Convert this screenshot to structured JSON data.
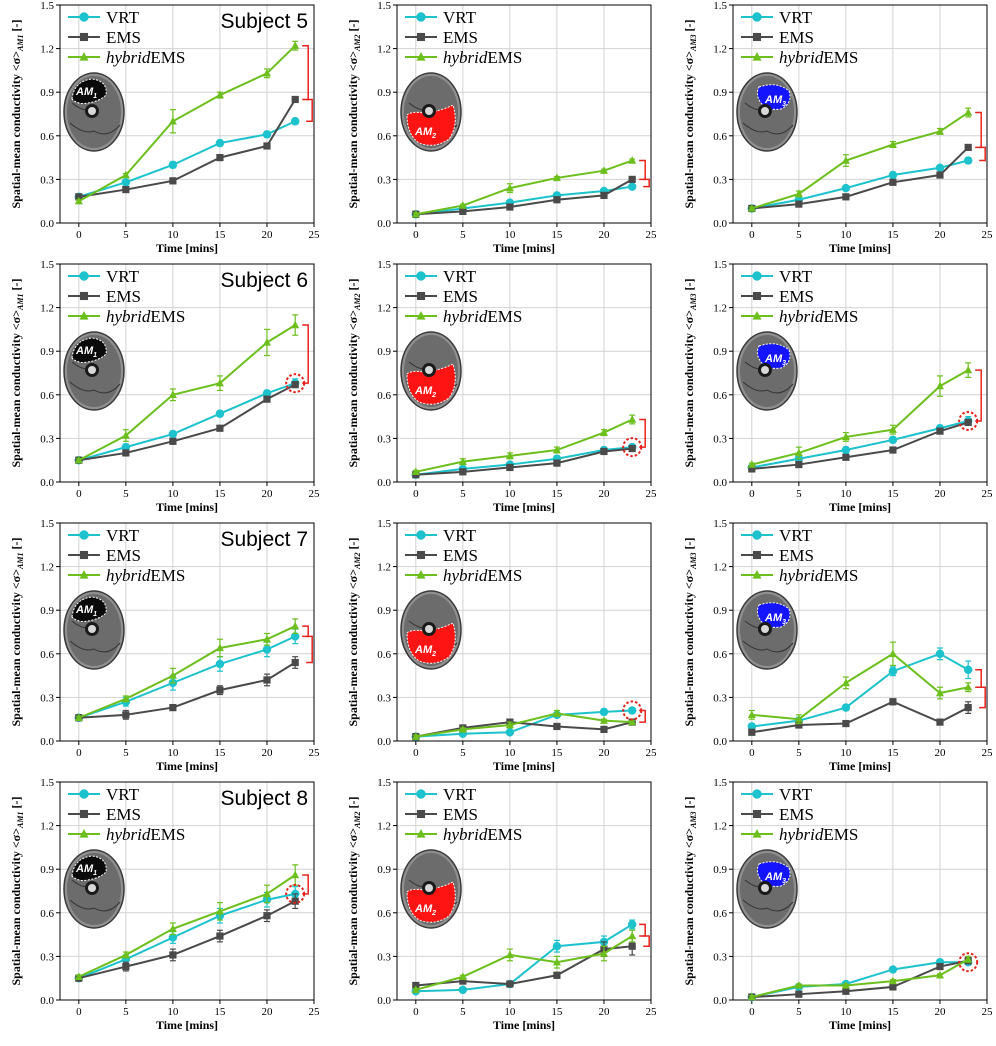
{
  "colors": {
    "vrt": "#1cc2cc",
    "ems": "#4a4a4a",
    "hybrid": "#6cbf1c",
    "bracket": "#e8231e",
    "grid": "#d2d2d2",
    "red_region": "#ff1414",
    "blue_region": "#1414ff"
  },
  "shared": {
    "xlabel": "Time [mins]",
    "ylabel_prefix": "Spatial-mean conductivity <",
    "ylabel_sigma": "σ",
    "ylabel_suffix": " [-]",
    "x_ticks": [
      "0",
      "5",
      "10",
      "15",
      "20",
      "25"
    ],
    "y_ticks": [
      "0.0",
      "0.3",
      "0.6",
      "0.9",
      "1.2",
      "1.5"
    ],
    "xlim": [
      -2,
      25
    ],
    "ylim": [
      0,
      1.5
    ],
    "legend": {
      "vrt": "VRT",
      "ems": "EMS",
      "hybrid_italic": "hybrid",
      "hybrid_rest": "EMS"
    },
    "region_labels": [
      "AM1",
      "AM2",
      "AM3"
    ],
    "region_label_parts": {
      "AM1": [
        "AM",
        "1"
      ],
      "AM2": [
        "AM",
        "2"
      ],
      "AM3": [
        "AM",
        "3"
      ]
    },
    "ylabel_subs": {
      "AM1": "AM1",
      "AM2": "AM2",
      "AM3": "AM3"
    }
  },
  "chart_data": [
    {
      "type": "line",
      "subject": "Subject 5",
      "region": "AM1",
      "x": [
        0,
        5,
        10,
        15,
        20,
        23
      ],
      "series": [
        {
          "name": "VRT",
          "values": [
            0.18,
            0.28,
            0.4,
            0.55,
            0.61,
            0.7
          ],
          "err": [
            0.02,
            0.02,
            0.02,
            0.02,
            0.02,
            0.02
          ]
        },
        {
          "name": "EMS",
          "values": [
            0.18,
            0.23,
            0.29,
            0.45,
            0.53,
            0.85
          ],
          "err": [
            0.01,
            0.01,
            0.01,
            0.01,
            0.01,
            0.01
          ]
        },
        {
          "name": "hybridEMS",
          "values": [
            0.15,
            0.33,
            0.7,
            0.88,
            1.03,
            1.22
          ],
          "err": [
            0.01,
            0.01,
            0.08,
            0.02,
            0.03,
            0.03
          ]
        }
      ],
      "brackets": [
        [
          1.22,
          0.85
        ],
        [
          0.85,
          0.7
        ]
      ],
      "circle": false
    },
    {
      "type": "line",
      "subject": "",
      "region": "AM2",
      "x": [
        0,
        5,
        10,
        15,
        20,
        23
      ],
      "series": [
        {
          "name": "VRT",
          "values": [
            0.06,
            0.1,
            0.14,
            0.19,
            0.22,
            0.25
          ],
          "err": [
            0.01,
            0.01,
            0.01,
            0.01,
            0.01,
            0.01
          ]
        },
        {
          "name": "EMS",
          "values": [
            0.06,
            0.08,
            0.11,
            0.16,
            0.19,
            0.3
          ],
          "err": [
            0.01,
            0.01,
            0.01,
            0.01,
            0.01,
            0.01
          ]
        },
        {
          "name": "hybridEMS",
          "values": [
            0.06,
            0.12,
            0.24,
            0.31,
            0.36,
            0.43
          ],
          "err": [
            0.01,
            0.01,
            0.03,
            0.01,
            0.01,
            0.01
          ]
        }
      ],
      "brackets": [
        [
          0.43,
          0.3
        ],
        [
          0.3,
          0.25
        ]
      ],
      "circle": false
    },
    {
      "type": "line",
      "subject": "",
      "region": "AM3",
      "x": [
        0,
        5,
        10,
        15,
        20,
        23
      ],
      "series": [
        {
          "name": "VRT",
          "values": [
            0.1,
            0.16,
            0.24,
            0.33,
            0.38,
            0.43
          ],
          "err": [
            0.01,
            0.01,
            0.01,
            0.02,
            0.01,
            0.02
          ]
        },
        {
          "name": "EMS",
          "values": [
            0.1,
            0.13,
            0.18,
            0.28,
            0.33,
            0.52
          ],
          "err": [
            0.01,
            0.01,
            0.01,
            0.01,
            0.01,
            0.01
          ]
        },
        {
          "name": "hybridEMS",
          "values": [
            0.1,
            0.2,
            0.43,
            0.54,
            0.63,
            0.76
          ],
          "err": [
            0.01,
            0.02,
            0.04,
            0.02,
            0.02,
            0.03
          ]
        }
      ],
      "brackets": [
        [
          0.76,
          0.52
        ],
        [
          0.52,
          0.43
        ]
      ],
      "circle": false
    },
    {
      "type": "line",
      "subject": "Subject 6",
      "region": "AM1",
      "x": [
        0,
        5,
        10,
        15,
        20,
        23
      ],
      "series": [
        {
          "name": "VRT",
          "values": [
            0.15,
            0.24,
            0.33,
            0.47,
            0.61,
            0.68
          ],
          "err": [
            0.01,
            0.02,
            0.02,
            0.02,
            0.02,
            0.03
          ]
        },
        {
          "name": "EMS",
          "values": [
            0.15,
            0.2,
            0.28,
            0.37,
            0.57,
            0.67
          ],
          "err": [
            0.01,
            0.01,
            0.01,
            0.01,
            0.01,
            0.01
          ]
        },
        {
          "name": "hybridEMS",
          "values": [
            0.15,
            0.32,
            0.6,
            0.68,
            0.96,
            1.08
          ],
          "err": [
            0.01,
            0.04,
            0.04,
            0.05,
            0.09,
            0.07
          ]
        }
      ],
      "brackets": [
        [
          1.08,
          0.68
        ]
      ],
      "circle": true
    },
    {
      "type": "line",
      "subject": "",
      "region": "AM2",
      "x": [
        0,
        5,
        10,
        15,
        20,
        23
      ],
      "series": [
        {
          "name": "VRT",
          "values": [
            0.05,
            0.09,
            0.12,
            0.16,
            0.22,
            0.24
          ],
          "err": [
            0.01,
            0.01,
            0.01,
            0.02,
            0.02,
            0.02
          ]
        },
        {
          "name": "EMS",
          "values": [
            0.05,
            0.07,
            0.1,
            0.13,
            0.21,
            0.23
          ],
          "err": [
            0.01,
            0.01,
            0.01,
            0.01,
            0.01,
            0.01
          ]
        },
        {
          "name": "hybridEMS",
          "values": [
            0.07,
            0.14,
            0.18,
            0.22,
            0.34,
            0.43
          ],
          "err": [
            0.01,
            0.02,
            0.02,
            0.02,
            0.02,
            0.03
          ]
        }
      ],
      "brackets": [
        [
          0.43,
          0.24
        ]
      ],
      "circle": true
    },
    {
      "type": "line",
      "subject": "",
      "region": "AM3",
      "x": [
        0,
        5,
        10,
        15,
        20,
        23
      ],
      "series": [
        {
          "name": "VRT",
          "values": [
            0.1,
            0.16,
            0.22,
            0.29,
            0.37,
            0.42
          ],
          "err": [
            0.01,
            0.02,
            0.02,
            0.02,
            0.02,
            0.03
          ]
        },
        {
          "name": "EMS",
          "values": [
            0.09,
            0.12,
            0.17,
            0.22,
            0.35,
            0.41
          ],
          "err": [
            0.01,
            0.01,
            0.01,
            0.01,
            0.01,
            0.01
          ]
        },
        {
          "name": "hybridEMS",
          "values": [
            0.12,
            0.2,
            0.31,
            0.36,
            0.66,
            0.77
          ],
          "err": [
            0.01,
            0.04,
            0.03,
            0.03,
            0.07,
            0.05
          ]
        }
      ],
      "brackets": [
        [
          0.77,
          0.42
        ]
      ],
      "circle": true
    },
    {
      "type": "line",
      "subject": "Subject 7",
      "region": "AM1",
      "x": [
        0,
        5,
        10,
        15,
        20,
        23
      ],
      "series": [
        {
          "name": "VRT",
          "values": [
            0.16,
            0.27,
            0.4,
            0.53,
            0.63,
            0.72
          ],
          "err": [
            0.01,
            0.03,
            0.05,
            0.05,
            0.05,
            0.05
          ]
        },
        {
          "name": "EMS",
          "values": [
            0.16,
            0.18,
            0.23,
            0.35,
            0.42,
            0.54
          ],
          "err": [
            0.01,
            0.03,
            0.02,
            0.03,
            0.04,
            0.04
          ]
        },
        {
          "name": "hybridEMS",
          "values": [
            0.16,
            0.29,
            0.45,
            0.64,
            0.7,
            0.79
          ],
          "err": [
            0.01,
            0.02,
            0.05,
            0.06,
            0.04,
            0.05
          ]
        }
      ],
      "brackets": [
        [
          0.79,
          0.72
        ],
        [
          0.72,
          0.54
        ]
      ],
      "circle": false
    },
    {
      "type": "line",
      "subject": "",
      "region": "AM2",
      "x": [
        0,
        5,
        10,
        15,
        20,
        23
      ],
      "series": [
        {
          "name": "VRT",
          "values": [
            0.03,
            0.05,
            0.06,
            0.18,
            0.2,
            0.21
          ],
          "err": [
            0.01,
            0.01,
            0.01,
            0.01,
            0.02,
            0.02
          ]
        },
        {
          "name": "EMS",
          "values": [
            0.03,
            0.09,
            0.13,
            0.1,
            0.08,
            0.13
          ],
          "err": [
            0.01,
            0.01,
            0.02,
            0.01,
            0.01,
            0.01
          ]
        },
        {
          "name": "hybridEMS",
          "values": [
            0.03,
            0.08,
            0.11,
            0.19,
            0.14,
            0.13
          ],
          "err": [
            0.01,
            0.01,
            0.02,
            0.02,
            0.01,
            0.01
          ]
        }
      ],
      "brackets": [
        [
          0.21,
          0.13
        ]
      ],
      "circle": true
    },
    {
      "type": "line",
      "subject": "",
      "region": "AM3",
      "x": [
        0,
        5,
        10,
        15,
        20,
        23
      ],
      "series": [
        {
          "name": "VRT",
          "values": [
            0.1,
            0.14,
            0.23,
            0.48,
            0.6,
            0.49
          ],
          "err": [
            0.02,
            0.02,
            0.02,
            0.03,
            0.04,
            0.06
          ]
        },
        {
          "name": "EMS",
          "values": [
            0.06,
            0.11,
            0.12,
            0.27,
            0.13,
            0.23
          ],
          "err": [
            0.01,
            0.01,
            0.01,
            0.02,
            0.01,
            0.04
          ]
        },
        {
          "name": "hybridEMS",
          "values": [
            0.18,
            0.15,
            0.4,
            0.6,
            0.33,
            0.37
          ],
          "err": [
            0.03,
            0.03,
            0.04,
            0.08,
            0.04,
            0.03
          ]
        }
      ],
      "brackets": [
        [
          0.49,
          0.37
        ],
        [
          0.37,
          0.23
        ]
      ],
      "circle": false
    },
    {
      "type": "line",
      "subject": "Subject 8",
      "region": "AM1",
      "x": [
        0,
        5,
        10,
        15,
        20,
        23
      ],
      "series": [
        {
          "name": "VRT",
          "values": [
            0.15,
            0.28,
            0.43,
            0.58,
            0.69,
            0.73
          ],
          "err": [
            0.01,
            0.03,
            0.04,
            0.05,
            0.05,
            0.05
          ]
        },
        {
          "name": "EMS",
          "values": [
            0.15,
            0.23,
            0.31,
            0.44,
            0.58,
            0.68
          ],
          "err": [
            0.01,
            0.03,
            0.04,
            0.04,
            0.04,
            0.05
          ]
        },
        {
          "name": "hybridEMS",
          "values": [
            0.16,
            0.31,
            0.49,
            0.61,
            0.73,
            0.86
          ],
          "err": [
            0.01,
            0.02,
            0.04,
            0.06,
            0.06,
            0.07
          ]
        }
      ],
      "brackets": [
        [
          0.86,
          0.73
        ]
      ],
      "circle": true
    },
    {
      "type": "line",
      "subject": "",
      "region": "AM2",
      "x": [
        0,
        5,
        10,
        15,
        20,
        23
      ],
      "series": [
        {
          "name": "VRT",
          "values": [
            0.06,
            0.07,
            0.11,
            0.37,
            0.4,
            0.52
          ],
          "err": [
            0.01,
            0.01,
            0.01,
            0.04,
            0.04,
            0.03
          ]
        },
        {
          "name": "EMS",
          "values": [
            0.1,
            0.13,
            0.11,
            0.17,
            0.35,
            0.37
          ],
          "err": [
            0.01,
            0.01,
            0.01,
            0.02,
            0.05,
            0.06
          ]
        },
        {
          "name": "hybridEMS",
          "values": [
            0.07,
            0.16,
            0.31,
            0.26,
            0.32,
            0.44
          ],
          "err": [
            0.01,
            0.01,
            0.04,
            0.04,
            0.05,
            0.04
          ]
        }
      ],
      "brackets": [
        [
          0.52,
          0.44
        ],
        [
          0.44,
          0.37
        ]
      ],
      "circle": false
    },
    {
      "type": "line",
      "subject": "",
      "region": "AM3",
      "x": [
        0,
        5,
        10,
        15,
        20,
        23
      ],
      "series": [
        {
          "name": "VRT",
          "values": [
            0.02,
            0.09,
            0.11,
            0.21,
            0.26,
            0.26
          ],
          "err": [
            0.01,
            0.01,
            0.01,
            0.01,
            0.01,
            0.01
          ]
        },
        {
          "name": "EMS",
          "values": [
            0.02,
            0.04,
            0.06,
            0.09,
            0.23,
            0.27
          ],
          "err": [
            0.01,
            0.01,
            0.01,
            0.01,
            0.01,
            0.02
          ]
        },
        {
          "name": "hybridEMS",
          "values": [
            0.02,
            0.1,
            0.1,
            0.13,
            0.17,
            0.28
          ],
          "err": [
            0.01,
            0.01,
            0.01,
            0.01,
            0.01,
            0.02
          ]
        }
      ],
      "brackets": [],
      "circle": true
    }
  ]
}
